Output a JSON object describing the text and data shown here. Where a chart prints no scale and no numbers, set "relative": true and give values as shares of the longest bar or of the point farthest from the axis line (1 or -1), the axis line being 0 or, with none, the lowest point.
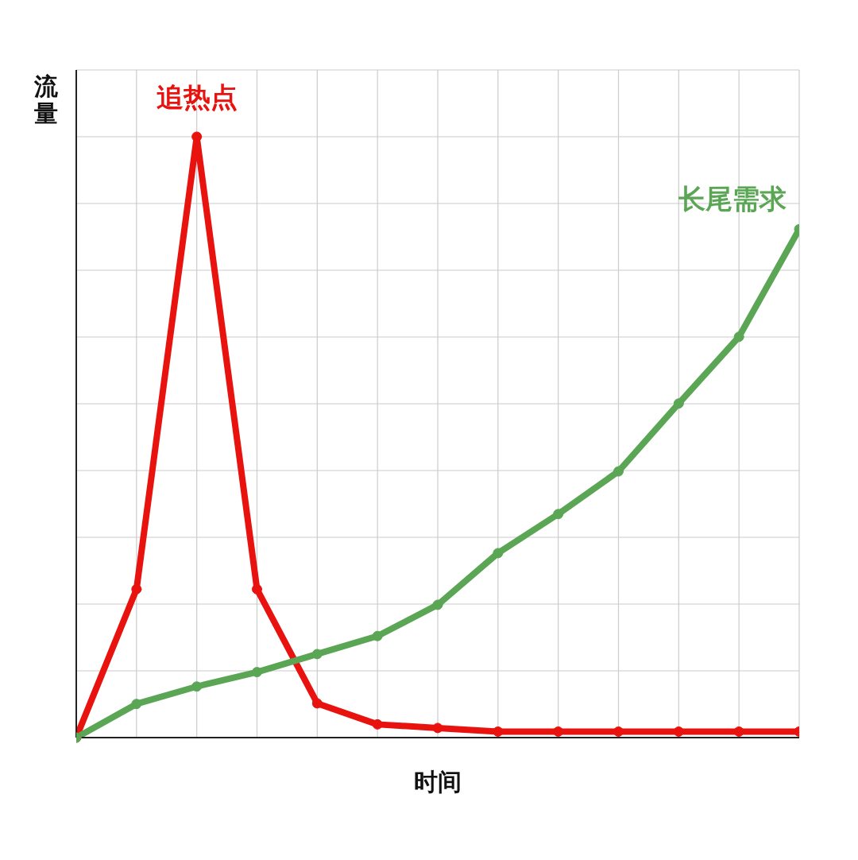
{
  "chart_data": {
    "type": "line",
    "xlabel": "时间",
    "ylabel": "流量",
    "relative": true,
    "grid": true,
    "marker": "circle",
    "line_style": "solid",
    "categories": [
      null,
      null,
      null,
      null,
      null,
      null,
      null,
      null,
      null,
      null,
      null,
      null,
      null
    ],
    "series": [
      {
        "name": "追热点",
        "color": "#e8130f",
        "values": [
          0,
          0.247,
          1,
          0.247,
          0.057,
          0.022,
          0.016,
          0.01,
          0.01,
          0.01,
          0.01,
          0.01,
          0.01
        ]
      },
      {
        "name": "长尾需求",
        "color": "#5aa655",
        "values": [
          0,
          0.056,
          0.085,
          0.109,
          0.139,
          0.169,
          0.221,
          0.307,
          0.372,
          0.443,
          0.556,
          0.667,
          0.846
        ]
      }
    ]
  }
}
